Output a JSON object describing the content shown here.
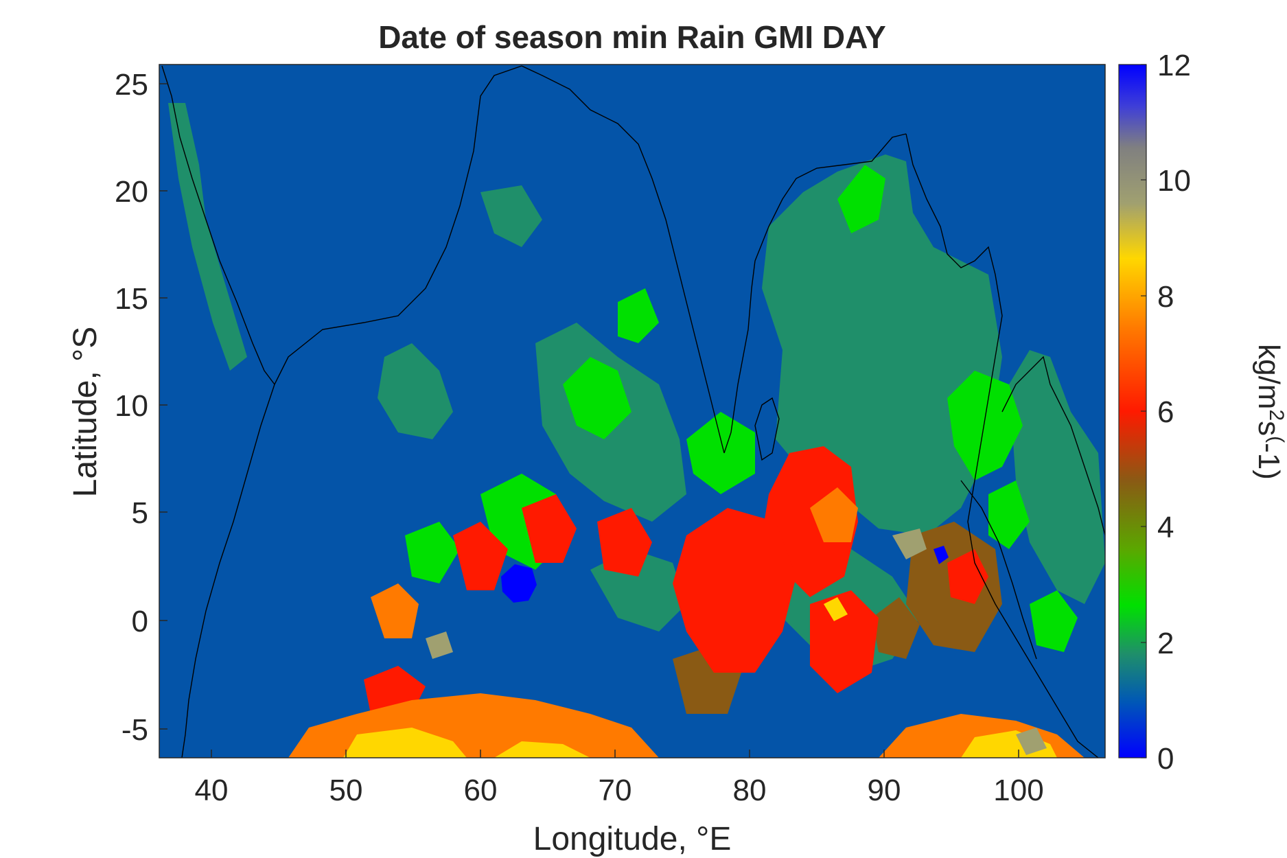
{
  "title": "Date of season min Rain GMI DAY",
  "axes": {
    "xlabel": "Longitude, °E",
    "ylabel": "Latitude, °S",
    "xlim": [
      36.2,
      106.5
    ],
    "ylim": [
      -6.4,
      26
    ],
    "xticks": [
      "40",
      "50",
      "60",
      "70",
      "80",
      "90",
      "100"
    ],
    "yticks": [
      "25",
      "20",
      "15",
      "10",
      "5",
      "0",
      "-5"
    ]
  },
  "colorbar": {
    "label": "kg/m²s(-1)",
    "label_parts": {
      "base": "kg/m",
      "sup1": "2",
      "mid": "s",
      "sup2": "(",
      "tail": "-1)"
    },
    "range": [
      0,
      12
    ],
    "ticks": [
      "0",
      "2",
      "4",
      "6",
      "8",
      "10",
      "12"
    ],
    "colormap": [
      "#0000ff",
      "#0057b7",
      "#1f8f6a",
      "#00e000",
      "#5aa800",
      "#8a5a14",
      "#ff1a00",
      "#ff7a00",
      "#ffd700",
      "#a0a070",
      "#808080",
      "#3e3ed8",
      "#0000ff"
    ]
  },
  "colors": {
    "background_field": "#0454a8",
    "coastline": "#000000"
  }
}
